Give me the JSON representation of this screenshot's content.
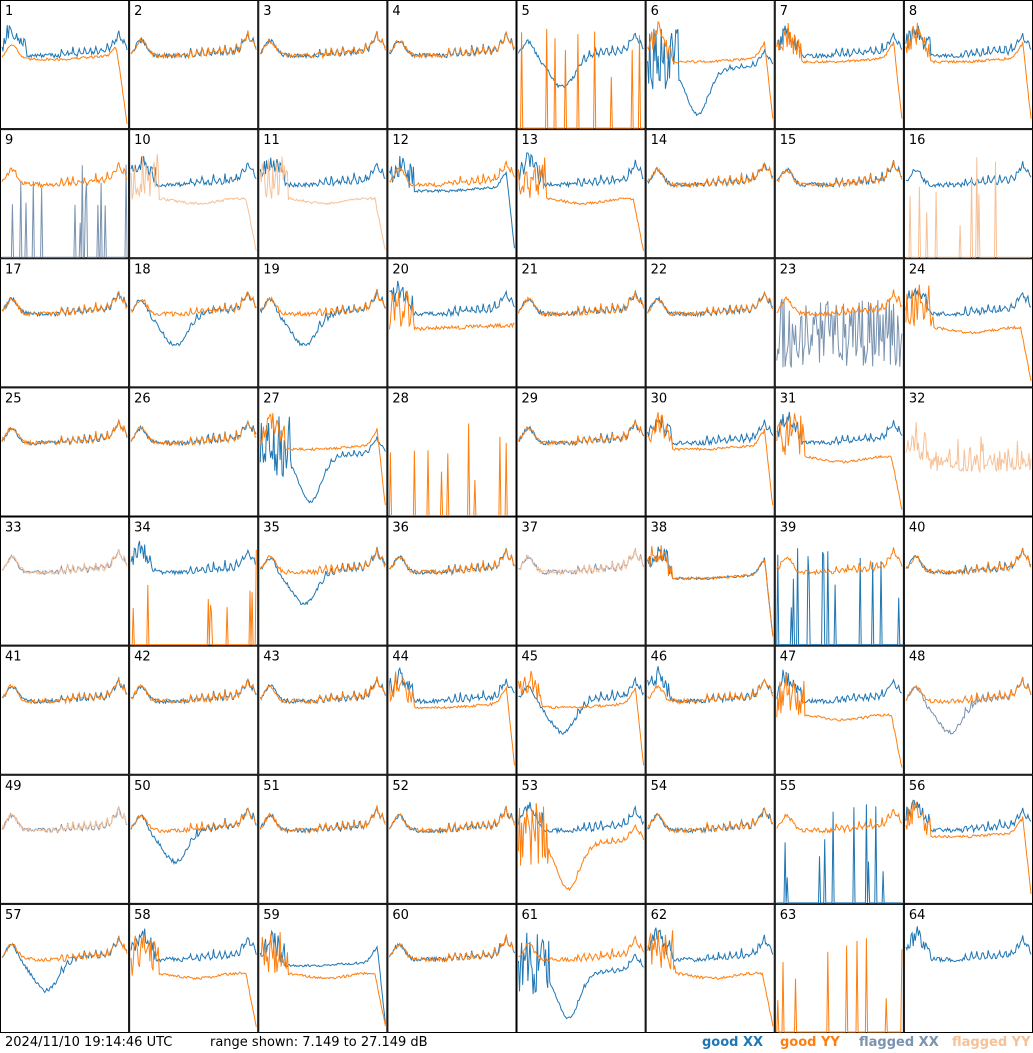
{
  "timestamp": "2024/11/10 19:14:46 UTC",
  "range_text": "range shown: 7.149 to 27.149 dB",
  "legend": [
    {
      "key": "good_xx",
      "text": "good XX",
      "color": "#1f77b4"
    },
    {
      "key": "good_yy",
      "text": "good YY",
      "color": "#ff7f0e"
    },
    {
      "key": "flagged_xx",
      "text": "flagged XX",
      "color": "#7a93b0"
    },
    {
      "key": "flagged_yy",
      "text": "flagged YY",
      "color": "#f7c197"
    }
  ],
  "chart_data": {
    "type": "line",
    "layout": "small-multiples 8x8",
    "ylim": [
      7.149,
      27.149
    ],
    "yunit": "dB",
    "series_keys": [
      "XX",
      "YY"
    ],
    "panels": [
      {
        "id": "1",
        "xx": {
          "flag": false,
          "shape": "rise"
        },
        "yy": {
          "flag": false,
          "shape": "drop"
        }
      },
      {
        "id": "2",
        "xx": {
          "flag": false,
          "shape": "normal"
        },
        "yy": {
          "flag": false,
          "shape": "normal"
        }
      },
      {
        "id": "3",
        "xx": {
          "flag": false,
          "shape": "normal"
        },
        "yy": {
          "flag": false,
          "shape": "normal"
        }
      },
      {
        "id": "4",
        "xx": {
          "flag": false,
          "shape": "normal"
        },
        "yy": {
          "flag": false,
          "shape": "normal"
        }
      },
      {
        "id": "5",
        "xx": {
          "flag": false,
          "shape": "dip"
        },
        "yy": {
          "flag": false,
          "shape": "dead"
        }
      },
      {
        "id": "6",
        "xx": {
          "flag": false,
          "shape": "deepdip"
        },
        "yy": {
          "flag": false,
          "shape": "plateau"
        }
      },
      {
        "id": "7",
        "xx": {
          "flag": false,
          "shape": "rise"
        },
        "yy": {
          "flag": false,
          "shape": "plateau"
        }
      },
      {
        "id": "8",
        "xx": {
          "flag": false,
          "shape": "rise"
        },
        "yy": {
          "flag": false,
          "shape": "plateau"
        }
      },
      {
        "id": "9",
        "xx": {
          "flag": true,
          "shape": "dead"
        },
        "yy": {
          "flag": false,
          "shape": "normal"
        }
      },
      {
        "id": "10",
        "xx": {
          "flag": false,
          "shape": "rise"
        },
        "yy": {
          "flag": true,
          "shape": "lowdrop"
        }
      },
      {
        "id": "11",
        "xx": {
          "flag": false,
          "shape": "rise"
        },
        "yy": {
          "flag": true,
          "shape": "lowdrop"
        }
      },
      {
        "id": "12",
        "xx": {
          "flag": false,
          "shape": "plateau"
        },
        "yy": {
          "flag": false,
          "shape": "normal"
        }
      },
      {
        "id": "13",
        "xx": {
          "flag": false,
          "shape": "rise"
        },
        "yy": {
          "flag": false,
          "shape": "lowdrop"
        }
      },
      {
        "id": "14",
        "xx": {
          "flag": false,
          "shape": "normal"
        },
        "yy": {
          "flag": false,
          "shape": "normal"
        }
      },
      {
        "id": "15",
        "xx": {
          "flag": false,
          "shape": "normal"
        },
        "yy": {
          "flag": false,
          "shape": "normal"
        }
      },
      {
        "id": "16",
        "xx": {
          "flag": false,
          "shape": "normal"
        },
        "yy": {
          "flag": true,
          "shape": "dead"
        }
      },
      {
        "id": "17",
        "xx": {
          "flag": false,
          "shape": "normal"
        },
        "yy": {
          "flag": false,
          "shape": "normal"
        }
      },
      {
        "id": "18",
        "xx": {
          "flag": false,
          "shape": "dip"
        },
        "yy": {
          "flag": false,
          "shape": "normal"
        }
      },
      {
        "id": "19",
        "xx": {
          "flag": false,
          "shape": "dip"
        },
        "yy": {
          "flag": false,
          "shape": "normal"
        }
      },
      {
        "id": "20",
        "xx": {
          "flag": false,
          "shape": "rise"
        },
        "yy": {
          "flag": false,
          "shape": "low"
        }
      },
      {
        "id": "21",
        "xx": {
          "flag": false,
          "shape": "normal"
        },
        "yy": {
          "flag": false,
          "shape": "normal"
        }
      },
      {
        "id": "22",
        "xx": {
          "flag": false,
          "shape": "normal"
        },
        "yy": {
          "flag": false,
          "shape": "normal"
        }
      },
      {
        "id": "23",
        "xx": {
          "flag": true,
          "shape": "noise"
        },
        "yy": {
          "flag": false,
          "shape": "normal"
        }
      },
      {
        "id": "24",
        "xx": {
          "flag": false,
          "shape": "rise"
        },
        "yy": {
          "flag": false,
          "shape": "lowdrop"
        }
      },
      {
        "id": "25",
        "xx": {
          "flag": false,
          "shape": "normal"
        },
        "yy": {
          "flag": false,
          "shape": "normal"
        }
      },
      {
        "id": "26",
        "xx": {
          "flag": false,
          "shape": "normal"
        },
        "yy": {
          "flag": false,
          "shape": "normal"
        }
      },
      {
        "id": "27",
        "xx": {
          "flag": false,
          "shape": "deepdip"
        },
        "yy": {
          "flag": false,
          "shape": "plateau"
        }
      },
      {
        "id": "28",
        "xx": {
          "flag": false,
          "shape": "none"
        },
        "yy": {
          "flag": false,
          "shape": "dead"
        }
      },
      {
        "id": "29",
        "xx": {
          "flag": false,
          "shape": "normal"
        },
        "yy": {
          "flag": false,
          "shape": "normal"
        }
      },
      {
        "id": "30",
        "xx": {
          "flag": false,
          "shape": "rise"
        },
        "yy": {
          "flag": false,
          "shape": "plateau"
        }
      },
      {
        "id": "31",
        "xx": {
          "flag": false,
          "shape": "rise"
        },
        "yy": {
          "flag": false,
          "shape": "lowdrop"
        }
      },
      {
        "id": "32",
        "xx": {
          "flag": false,
          "shape": "none"
        },
        "yy": {
          "flag": true,
          "shape": "noisy"
        }
      },
      {
        "id": "33",
        "xx": {
          "flag": true,
          "shape": "normal"
        },
        "yy": {
          "flag": true,
          "shape": "normal"
        }
      },
      {
        "id": "34",
        "xx": {
          "flag": false,
          "shape": "rise"
        },
        "yy": {
          "flag": false,
          "shape": "dead"
        }
      },
      {
        "id": "35",
        "xx": {
          "flag": false,
          "shape": "dip"
        },
        "yy": {
          "flag": false,
          "shape": "normal"
        }
      },
      {
        "id": "36",
        "xx": {
          "flag": false,
          "shape": "normal"
        },
        "yy": {
          "flag": false,
          "shape": "normal"
        }
      },
      {
        "id": "37",
        "xx": {
          "flag": true,
          "shape": "normal"
        },
        "yy": {
          "flag": true,
          "shape": "normal"
        }
      },
      {
        "id": "38",
        "xx": {
          "flag": false,
          "shape": "plateau"
        },
        "yy": {
          "flag": false,
          "shape": "plateau"
        }
      },
      {
        "id": "39",
        "xx": {
          "flag": false,
          "shape": "dead"
        },
        "yy": {
          "flag": false,
          "shape": "normal"
        }
      },
      {
        "id": "40",
        "xx": {
          "flag": false,
          "shape": "normal"
        },
        "yy": {
          "flag": false,
          "shape": "normal"
        }
      },
      {
        "id": "41",
        "xx": {
          "flag": false,
          "shape": "normal"
        },
        "yy": {
          "flag": false,
          "shape": "normal"
        }
      },
      {
        "id": "42",
        "xx": {
          "flag": false,
          "shape": "normal"
        },
        "yy": {
          "flag": false,
          "shape": "normal"
        }
      },
      {
        "id": "43",
        "xx": {
          "flag": false,
          "shape": "normal"
        },
        "yy": {
          "flag": false,
          "shape": "normal"
        }
      },
      {
        "id": "44",
        "xx": {
          "flag": false,
          "shape": "rise"
        },
        "yy": {
          "flag": false,
          "shape": "plateau"
        }
      },
      {
        "id": "45",
        "xx": {
          "flag": false,
          "shape": "dip"
        },
        "yy": {
          "flag": false,
          "shape": "plateau"
        }
      },
      {
        "id": "46",
        "xx": {
          "flag": false,
          "shape": "rise"
        },
        "yy": {
          "flag": false,
          "shape": "normal"
        }
      },
      {
        "id": "47",
        "xx": {
          "flag": false,
          "shape": "rise"
        },
        "yy": {
          "flag": false,
          "shape": "lowdrop"
        }
      },
      {
        "id": "48",
        "xx": {
          "flag": true,
          "shape": "dip"
        },
        "yy": {
          "flag": false,
          "shape": "normal"
        }
      },
      {
        "id": "49",
        "xx": {
          "flag": true,
          "shape": "normal"
        },
        "yy": {
          "flag": true,
          "shape": "normal"
        }
      },
      {
        "id": "50",
        "xx": {
          "flag": false,
          "shape": "dip"
        },
        "yy": {
          "flag": false,
          "shape": "normal"
        }
      },
      {
        "id": "51",
        "xx": {
          "flag": false,
          "shape": "normal"
        },
        "yy": {
          "flag": false,
          "shape": "normal"
        }
      },
      {
        "id": "52",
        "xx": {
          "flag": false,
          "shape": "normal"
        },
        "yy": {
          "flag": false,
          "shape": "normal"
        }
      },
      {
        "id": "53",
        "xx": {
          "flag": false,
          "shape": "rise"
        },
        "yy": {
          "flag": false,
          "shape": "deepdip"
        }
      },
      {
        "id": "54",
        "xx": {
          "flag": false,
          "shape": "normal"
        },
        "yy": {
          "flag": false,
          "shape": "normal"
        }
      },
      {
        "id": "55",
        "xx": {
          "flag": false,
          "shape": "dead"
        },
        "yy": {
          "flag": false,
          "shape": "normal"
        }
      },
      {
        "id": "56",
        "xx": {
          "flag": false,
          "shape": "rise"
        },
        "yy": {
          "flag": false,
          "shape": "plateau"
        }
      },
      {
        "id": "57",
        "xx": {
          "flag": false,
          "shape": "dip"
        },
        "yy": {
          "flag": false,
          "shape": "normal"
        }
      },
      {
        "id": "58",
        "xx": {
          "flag": false,
          "shape": "rise"
        },
        "yy": {
          "flag": false,
          "shape": "lowdrop"
        }
      },
      {
        "id": "59",
        "xx": {
          "flag": false,
          "shape": "plateau"
        },
        "yy": {
          "flag": false,
          "shape": "lowdrop"
        }
      },
      {
        "id": "60",
        "xx": {
          "flag": false,
          "shape": "normal"
        },
        "yy": {
          "flag": false,
          "shape": "normal"
        }
      },
      {
        "id": "61",
        "xx": {
          "flag": false,
          "shape": "deepdip"
        },
        "yy": {
          "flag": false,
          "shape": "normal"
        }
      },
      {
        "id": "62",
        "xx": {
          "flag": false,
          "shape": "rise"
        },
        "yy": {
          "flag": false,
          "shape": "lowdrop"
        }
      },
      {
        "id": "63",
        "xx": {
          "flag": false,
          "shape": "none"
        },
        "yy": {
          "flag": false,
          "shape": "dead"
        }
      },
      {
        "id": "64",
        "xx": {
          "flag": false,
          "shape": "rise"
        },
        "yy": {
          "flag": false,
          "shape": "none"
        }
      }
    ]
  }
}
